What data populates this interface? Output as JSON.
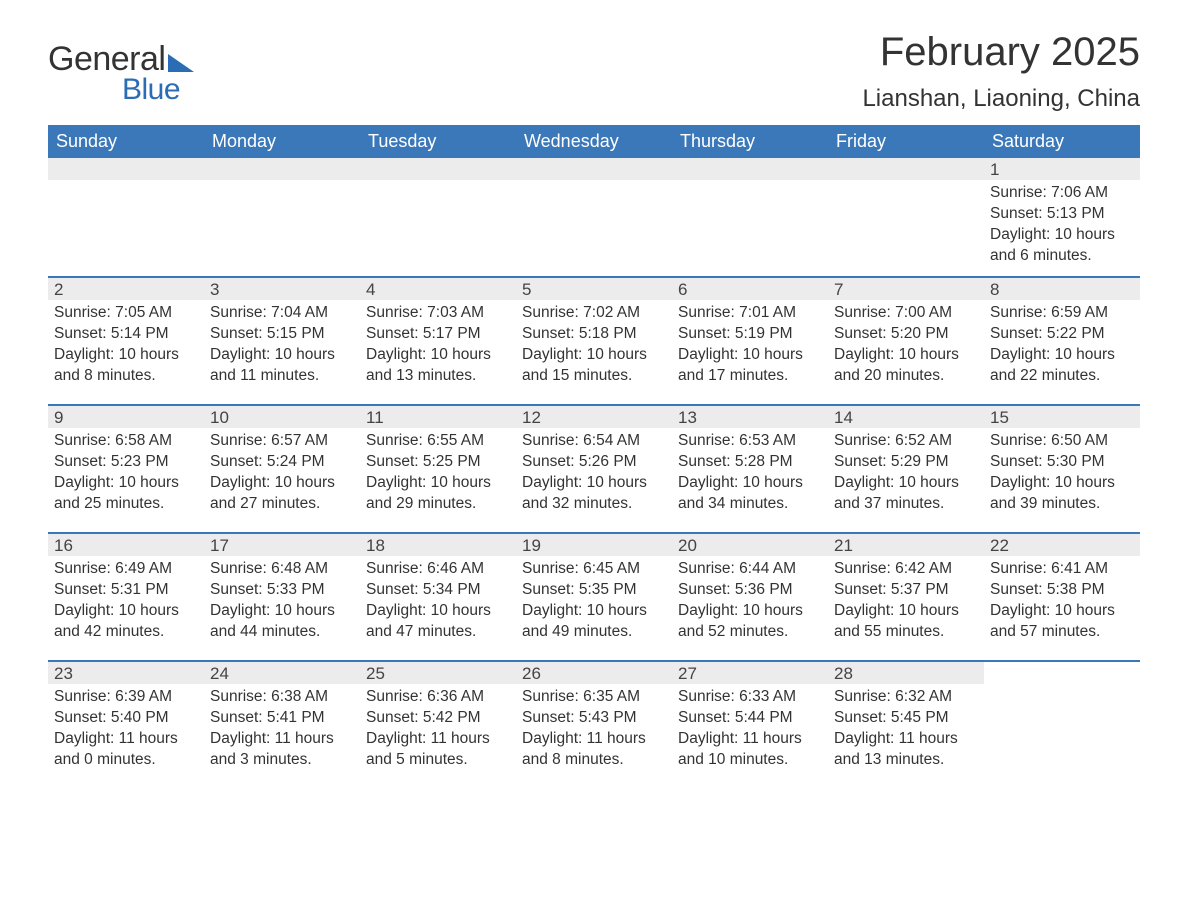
{
  "brand": {
    "word1": "General",
    "word2": "Blue",
    "accent": "#2a6db5"
  },
  "title": "February 2025",
  "location": "Lianshan, Liaoning, China",
  "header_bg": "#3b78b9",
  "daynum_bg": "#ececec",
  "text_color": "#333333",
  "weekdays": [
    "Sunday",
    "Monday",
    "Tuesday",
    "Wednesday",
    "Thursday",
    "Friday",
    "Saturday"
  ],
  "weeks": [
    [
      null,
      null,
      null,
      null,
      null,
      null,
      {
        "n": "1",
        "sr": "7:06 AM",
        "ss": "5:13 PM",
        "dl": "10 hours and 6 minutes."
      }
    ],
    [
      {
        "n": "2",
        "sr": "7:05 AM",
        "ss": "5:14 PM",
        "dl": "10 hours and 8 minutes."
      },
      {
        "n": "3",
        "sr": "7:04 AM",
        "ss": "5:15 PM",
        "dl": "10 hours and 11 minutes."
      },
      {
        "n": "4",
        "sr": "7:03 AM",
        "ss": "5:17 PM",
        "dl": "10 hours and 13 minutes."
      },
      {
        "n": "5",
        "sr": "7:02 AM",
        "ss": "5:18 PM",
        "dl": "10 hours and 15 minutes."
      },
      {
        "n": "6",
        "sr": "7:01 AM",
        "ss": "5:19 PM",
        "dl": "10 hours and 17 minutes."
      },
      {
        "n": "7",
        "sr": "7:00 AM",
        "ss": "5:20 PM",
        "dl": "10 hours and 20 minutes."
      },
      {
        "n": "8",
        "sr": "6:59 AM",
        "ss": "5:22 PM",
        "dl": "10 hours and 22 minutes."
      }
    ],
    [
      {
        "n": "9",
        "sr": "6:58 AM",
        "ss": "5:23 PM",
        "dl": "10 hours and 25 minutes."
      },
      {
        "n": "10",
        "sr": "6:57 AM",
        "ss": "5:24 PM",
        "dl": "10 hours and 27 minutes."
      },
      {
        "n": "11",
        "sr": "6:55 AM",
        "ss": "5:25 PM",
        "dl": "10 hours and 29 minutes."
      },
      {
        "n": "12",
        "sr": "6:54 AM",
        "ss": "5:26 PM",
        "dl": "10 hours and 32 minutes."
      },
      {
        "n": "13",
        "sr": "6:53 AM",
        "ss": "5:28 PM",
        "dl": "10 hours and 34 minutes."
      },
      {
        "n": "14",
        "sr": "6:52 AM",
        "ss": "5:29 PM",
        "dl": "10 hours and 37 minutes."
      },
      {
        "n": "15",
        "sr": "6:50 AM",
        "ss": "5:30 PM",
        "dl": "10 hours and 39 minutes."
      }
    ],
    [
      {
        "n": "16",
        "sr": "6:49 AM",
        "ss": "5:31 PM",
        "dl": "10 hours and 42 minutes."
      },
      {
        "n": "17",
        "sr": "6:48 AM",
        "ss": "5:33 PM",
        "dl": "10 hours and 44 minutes."
      },
      {
        "n": "18",
        "sr": "6:46 AM",
        "ss": "5:34 PM",
        "dl": "10 hours and 47 minutes."
      },
      {
        "n": "19",
        "sr": "6:45 AM",
        "ss": "5:35 PM",
        "dl": "10 hours and 49 minutes."
      },
      {
        "n": "20",
        "sr": "6:44 AM",
        "ss": "5:36 PM",
        "dl": "10 hours and 52 minutes."
      },
      {
        "n": "21",
        "sr": "6:42 AM",
        "ss": "5:37 PM",
        "dl": "10 hours and 55 minutes."
      },
      {
        "n": "22",
        "sr": "6:41 AM",
        "ss": "5:38 PM",
        "dl": "10 hours and 57 minutes."
      }
    ],
    [
      {
        "n": "23",
        "sr": "6:39 AM",
        "ss": "5:40 PM",
        "dl": "11 hours and 0 minutes."
      },
      {
        "n": "24",
        "sr": "6:38 AM",
        "ss": "5:41 PM",
        "dl": "11 hours and 3 minutes."
      },
      {
        "n": "25",
        "sr": "6:36 AM",
        "ss": "5:42 PM",
        "dl": "11 hours and 5 minutes."
      },
      {
        "n": "26",
        "sr": "6:35 AM",
        "ss": "5:43 PM",
        "dl": "11 hours and 8 minutes."
      },
      {
        "n": "27",
        "sr": "6:33 AM",
        "ss": "5:44 PM",
        "dl": "11 hours and 10 minutes."
      },
      {
        "n": "28",
        "sr": "6:32 AM",
        "ss": "5:45 PM",
        "dl": "11 hours and 13 minutes."
      },
      null
    ]
  ],
  "labels": {
    "sunrise": "Sunrise: ",
    "sunset": "Sunset: ",
    "daylight": "Daylight: "
  }
}
